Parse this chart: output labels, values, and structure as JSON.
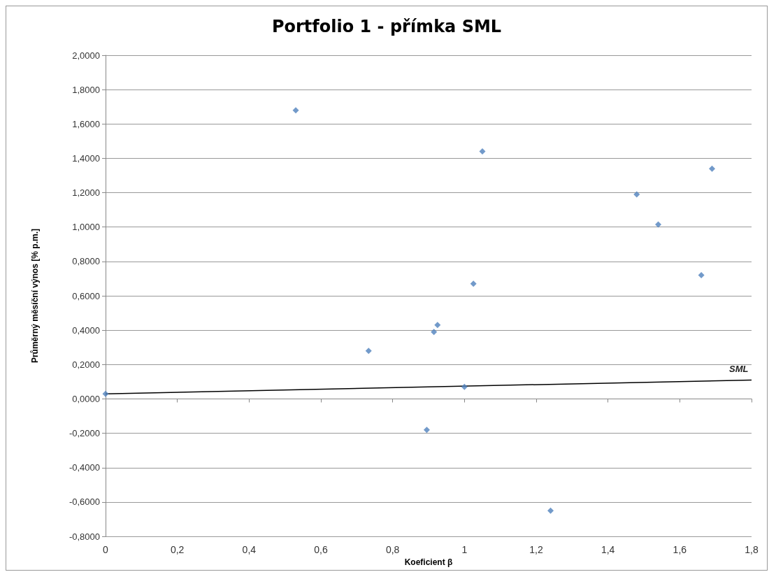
{
  "chart_data": {
    "type": "scatter",
    "title": "Portfolio 1 - přímka SML",
    "xlabel": "Koeficient β",
    "ylabel": "Průměrný měsíční výnos [% p.m.]",
    "x": [
      0,
      0.53,
      0.733,
      0.895,
      0.915,
      0.925,
      1.0,
      1.025,
      1.05,
      1.24,
      1.48,
      1.54,
      1.66,
      1.69
    ],
    "series": [
      {
        "color": "#4f81bd",
        "values": [
          0.03,
          1.68,
          0.28,
          -0.18,
          0.39,
          0.43,
          0.07,
          0.67,
          1.44,
          -0.65,
          1.19,
          1.015,
          0.72,
          1.34
        ]
      },
      {
        "name": "SML",
        "type": "line",
        "color": "#000000",
        "x": [
          0,
          1.8
        ],
        "values": [
          0.03,
          0.11
        ],
        "marker": "none"
      }
    ],
    "marker": "diamond",
    "grid": "y",
    "legend": false,
    "xlim": [
      0,
      1.8
    ],
    "xticks": [
      0,
      {
        "value": 0.2,
        "label": "0,2"
      },
      {
        "value": 0.4,
        "label": "0,4"
      },
      {
        "value": 0.6,
        "label": "0,6"
      },
      {
        "value": 0.8,
        "label": "0,8"
      },
      1,
      {
        "value": 1.2,
        "label": "1,2"
      },
      {
        "value": 1.4,
        "label": "1,4"
      },
      {
        "value": 1.6,
        "label": "1,6"
      },
      {
        "value": 1.8,
        "label": "1,8"
      }
    ],
    "ylim": [
      -0.8,
      2.0
    ],
    "yticks": [
      {
        "value": -0.8,
        "label": "-0,8000"
      },
      {
        "value": -0.6,
        "label": "-0,6000"
      },
      {
        "value": -0.4,
        "label": "-0,4000"
      },
      {
        "value": -0.2,
        "label": "-0,2000"
      },
      {
        "value": 0,
        "label": "0,0000"
      },
      {
        "value": 0.2,
        "label": "0,2000"
      },
      {
        "value": 0.4,
        "label": "0,4000"
      },
      {
        "value": 0.6,
        "label": "0,6000"
      },
      {
        "value": 0.8,
        "label": "0,8000"
      },
      {
        "value": 1.0,
        "label": "1,0000"
      },
      {
        "value": 1.2,
        "label": "1,2000"
      },
      {
        "value": 1.4,
        "label": "1,4000"
      },
      {
        "value": 1.6,
        "label": "1,6000"
      },
      {
        "value": 1.8,
        "label": "1,8000"
      },
      {
        "value": 2.0,
        "label": "2,0000"
      }
    ]
  }
}
